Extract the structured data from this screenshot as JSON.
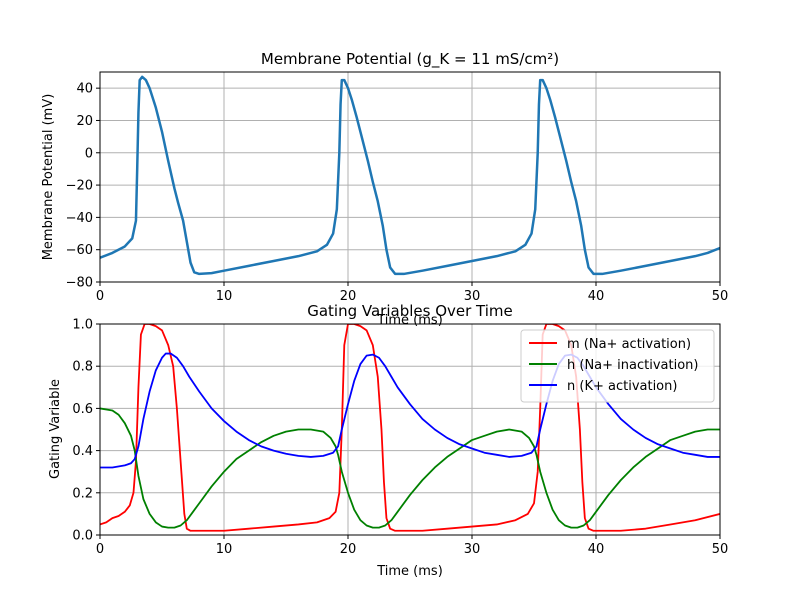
{
  "chart_data": [
    {
      "type": "line",
      "title": "Membrane Potential (g_K = 11 mS/cm²)",
      "xlabel": "Time (ms)",
      "ylabel": "Membrane Potential (mV)",
      "xlim": [
        0,
        50
      ],
      "ylim": [
        -80,
        50
      ],
      "xticks": [
        0,
        10,
        20,
        30,
        40,
        50
      ],
      "yticks": [
        -80,
        -60,
        -40,
        -20,
        0,
        20,
        40
      ],
      "grid": true,
      "series": [
        {
          "name": "V",
          "color": "#1f77b4",
          "x": [
            0,
            1,
            2,
            2.6,
            2.9,
            3.0,
            3.1,
            3.2,
            3.4,
            3.7,
            4.0,
            4.5,
            5.0,
            5.5,
            6.0,
            6.3,
            6.7,
            7.0,
            7.3,
            7.6,
            8.0,
            9.0,
            10,
            12,
            14,
            16,
            17.5,
            18.3,
            18.8,
            19.1,
            19.3,
            19.4,
            19.5,
            19.7,
            20.0,
            20.3,
            20.7,
            21.1,
            21.6,
            22.0,
            22.4,
            22.8,
            23.1,
            23.4,
            23.8,
            24.5,
            26,
            28,
            30,
            32,
            33.5,
            34.3,
            34.8,
            35.1,
            35.3,
            35.4,
            35.5,
            35.7,
            36.0,
            36.3,
            36.7,
            37.1,
            37.6,
            38.0,
            38.4,
            38.8,
            39.1,
            39.4,
            39.8,
            40.5,
            42,
            44,
            46,
            48,
            49,
            50
          ],
          "y": [
            -65,
            -62,
            -58,
            -53,
            -42,
            -10,
            25,
            45,
            47,
            45,
            40,
            28,
            13,
            -5,
            -22,
            -31,
            -42,
            -55,
            -68,
            -74,
            -75,
            -74.5,
            -73,
            -70,
            -67,
            -64,
            -61,
            -57,
            -50,
            -35,
            0,
            30,
            45,
            45,
            40,
            33,
            22,
            10,
            -5,
            -18,
            -30,
            -45,
            -60,
            -71,
            -75,
            -75,
            -73,
            -70,
            -67,
            -64,
            -61,
            -57,
            -50,
            -35,
            0,
            30,
            45,
            45,
            40,
            33,
            22,
            10,
            -5,
            -18,
            -30,
            -45,
            -60,
            -71,
            -75,
            -75,
            -73,
            -70,
            -67,
            -64,
            -62,
            -59
          ]
        }
      ]
    },
    {
      "type": "line",
      "title": "Gating Variables Over Time",
      "xlabel": "Time (ms)",
      "ylabel": "Gating Variable",
      "xlim": [
        0,
        50
      ],
      "ylim": [
        0,
        1
      ],
      "xticks": [
        0,
        10,
        20,
        30,
        40,
        50
      ],
      "yticks": [
        0.0,
        0.2,
        0.4,
        0.6,
        0.8,
        1.0
      ],
      "ytick_labels": [
        "0.0",
        "0.2",
        "0.4",
        "0.6",
        "0.8",
        "1.0"
      ],
      "grid": true,
      "legend": "top-right",
      "series": [
        {
          "name": "m (Na+ activation)",
          "color": "#ff0000",
          "x": [
            0,
            0.5,
            1,
            1.5,
            2,
            2.4,
            2.7,
            2.9,
            3.1,
            3.3,
            3.6,
            4.0,
            4.5,
            5.0,
            5.5,
            5.9,
            6.2,
            6.5,
            6.8,
            7.0,
            7.3,
            7.6,
            8,
            10,
            12,
            14,
            16,
            17.5,
            18.5,
            19.0,
            19.3,
            19.5,
            19.7,
            20.0,
            20.5,
            21.0,
            21.5,
            22.0,
            22.4,
            22.7,
            22.9,
            23.1,
            23.4,
            23.8,
            26,
            28,
            30,
            32,
            33.5,
            34.5,
            35.0,
            35.3,
            35.5,
            35.7,
            36.0,
            36.5,
            37.0,
            37.5,
            38.0,
            38.4,
            38.7,
            38.9,
            39.1,
            39.4,
            39.8,
            42,
            44,
            46,
            48,
            50
          ],
          "y": [
            0.05,
            0.06,
            0.08,
            0.09,
            0.11,
            0.14,
            0.2,
            0.35,
            0.7,
            0.95,
            1.0,
            1.0,
            0.99,
            0.97,
            0.9,
            0.8,
            0.6,
            0.35,
            0.1,
            0.03,
            0.02,
            0.02,
            0.02,
            0.02,
            0.03,
            0.04,
            0.05,
            0.06,
            0.08,
            0.11,
            0.2,
            0.5,
            0.9,
            1.0,
            1.0,
            0.99,
            0.97,
            0.9,
            0.75,
            0.5,
            0.25,
            0.08,
            0.03,
            0.02,
            0.02,
            0.03,
            0.04,
            0.05,
            0.07,
            0.1,
            0.15,
            0.3,
            0.6,
            0.95,
            1.0,
            1.0,
            0.99,
            0.97,
            0.9,
            0.75,
            0.5,
            0.25,
            0.08,
            0.03,
            0.02,
            0.02,
            0.03,
            0.05,
            0.07,
            0.1
          ]
        },
        {
          "name": "h (Na+ inactivation)",
          "color": "#008000",
          "x": [
            0,
            1,
            1.5,
            2,
            2.5,
            2.8,
            3.1,
            3.5,
            4.0,
            4.5,
            5.0,
            5.5,
            6.0,
            6.5,
            7.0,
            7.5,
            8,
            9,
            10,
            11,
            12,
            13,
            14,
            15,
            16,
            17,
            18,
            18.6,
            19.0,
            19.2,
            19.5,
            20.0,
            20.5,
            21.0,
            21.5,
            22.0,
            22.5,
            23.0,
            23.5,
            24,
            25,
            26,
            27,
            28,
            29,
            30,
            31,
            32,
            33,
            34,
            34.6,
            35.0,
            35.2,
            35.5,
            36.0,
            36.5,
            37.0,
            37.5,
            38.0,
            38.5,
            39.0,
            39.5,
            40,
            41,
            42,
            43,
            44,
            45,
            46,
            47,
            48,
            49,
            50
          ],
          "y": [
            0.6,
            0.59,
            0.57,
            0.53,
            0.47,
            0.4,
            0.28,
            0.17,
            0.1,
            0.06,
            0.04,
            0.035,
            0.035,
            0.045,
            0.07,
            0.11,
            0.15,
            0.23,
            0.3,
            0.36,
            0.4,
            0.44,
            0.47,
            0.49,
            0.5,
            0.5,
            0.49,
            0.46,
            0.42,
            0.38,
            0.3,
            0.2,
            0.12,
            0.07,
            0.045,
            0.035,
            0.035,
            0.045,
            0.07,
            0.11,
            0.19,
            0.26,
            0.32,
            0.37,
            0.41,
            0.45,
            0.47,
            0.49,
            0.5,
            0.49,
            0.46,
            0.42,
            0.38,
            0.3,
            0.2,
            0.12,
            0.07,
            0.045,
            0.035,
            0.035,
            0.045,
            0.07,
            0.11,
            0.19,
            0.26,
            0.32,
            0.37,
            0.41,
            0.45,
            0.47,
            0.49,
            0.5,
            0.5
          ]
        },
        {
          "name": "n (K+ activation)",
          "color": "#0000ff",
          "x": [
            0,
            1,
            2,
            2.5,
            2.8,
            3.1,
            3.5,
            4.0,
            4.5,
            5.0,
            5.3,
            5.7,
            6.2,
            6.7,
            7.2,
            8,
            9,
            10,
            11,
            12,
            13,
            14,
            15,
            16,
            17,
            18,
            18.8,
            19.2,
            19.5,
            20.0,
            20.5,
            21.0,
            21.5,
            22.0,
            22.5,
            23.0,
            23.5,
            24,
            25,
            26,
            27,
            28,
            29,
            30,
            31,
            32,
            33,
            34,
            34.8,
            35.2,
            35.5,
            36.0,
            36.5,
            37.0,
            37.5,
            38.0,
            38.5,
            39.0,
            39.5,
            40,
            41,
            42,
            43,
            44,
            45,
            46,
            47,
            48,
            49,
            50
          ],
          "y": [
            0.32,
            0.32,
            0.33,
            0.34,
            0.36,
            0.42,
            0.55,
            0.68,
            0.78,
            0.84,
            0.86,
            0.86,
            0.84,
            0.8,
            0.75,
            0.68,
            0.6,
            0.54,
            0.49,
            0.45,
            0.42,
            0.4,
            0.385,
            0.375,
            0.37,
            0.375,
            0.39,
            0.42,
            0.5,
            0.62,
            0.73,
            0.81,
            0.85,
            0.855,
            0.84,
            0.8,
            0.75,
            0.7,
            0.62,
            0.55,
            0.5,
            0.46,
            0.43,
            0.41,
            0.39,
            0.38,
            0.37,
            0.375,
            0.39,
            0.42,
            0.5,
            0.62,
            0.73,
            0.81,
            0.85,
            0.855,
            0.84,
            0.8,
            0.75,
            0.7,
            0.62,
            0.55,
            0.5,
            0.46,
            0.43,
            0.41,
            0.39,
            0.38,
            0.37,
            0.37
          ]
        }
      ]
    }
  ]
}
